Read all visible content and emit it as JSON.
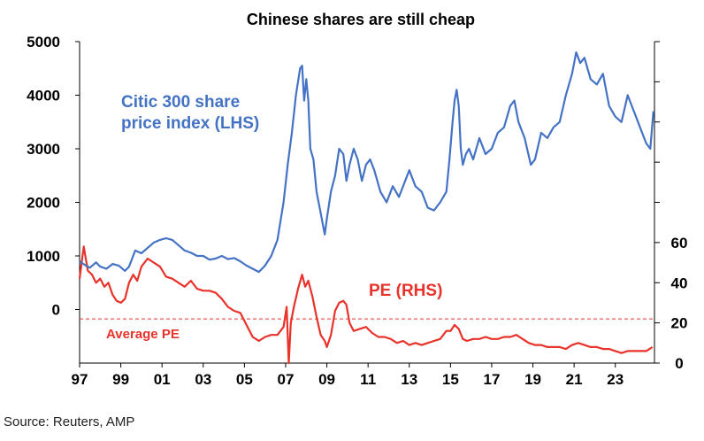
{
  "chart_data": {
    "type": "line",
    "title": "Chinese shares are still cheap",
    "source": "Source: Reuters, AMP",
    "x_ticks": [
      "97",
      "99",
      "01",
      "03",
      "05",
      "07",
      "09",
      "11",
      "13",
      "15",
      "17",
      "19",
      "21",
      "23"
    ],
    "x_tick_years": [
      1997,
      1999,
      2001,
      2003,
      2005,
      2007,
      2009,
      2011,
      2013,
      2015,
      2017,
      2019,
      2021,
      2023
    ],
    "xlim": [
      1997,
      2024.9
    ],
    "left_axis": {
      "ticks": [
        "5000",
        "4000",
        "3000",
        "2000",
        "1000",
        "0"
      ],
      "tick_values": [
        5000,
        4000,
        3000,
        2000,
        1000,
        0
      ],
      "ylim": [
        -1000,
        5000
      ]
    },
    "right_axis": {
      "ticks": [
        "60",
        "40",
        "20",
        "0"
      ],
      "tick_values": [
        60,
        40,
        20,
        0
      ],
      "ylim": [
        0,
        160
      ]
    },
    "average_pe": 22,
    "labels": {
      "lhs_line1": "Citic 300 share",
      "lhs_line2": "price index (LHS)",
      "rhs": "PE (RHS)",
      "avg": "Average PE"
    },
    "series": [
      {
        "name": "Citic 300 share price index (LHS)",
        "axis": "left",
        "color": "#4472C4",
        "x": [
          1997.0,
          1997.3,
          1997.5,
          1997.8,
          1998.0,
          1998.3,
          1998.6,
          1998.9,
          1999.2,
          1999.4,
          1999.7,
          2000.0,
          2000.3,
          2000.6,
          2000.9,
          2001.2,
          2001.5,
          2001.8,
          2002.1,
          2002.4,
          2002.7,
          2003.0,
          2003.3,
          2003.6,
          2003.9,
          2004.2,
          2004.5,
          2004.8,
          2005.1,
          2005.4,
          2005.7,
          2006.0,
          2006.3,
          2006.6,
          2006.9,
          2007.1,
          2007.3,
          2007.5,
          2007.7,
          2007.8,
          2007.9,
          2008.0,
          2008.1,
          2008.2,
          2008.35,
          2008.5,
          2008.7,
          2008.9,
          2009.0,
          2009.2,
          2009.4,
          2009.6,
          2009.8,
          2009.95,
          2010.1,
          2010.3,
          2010.5,
          2010.7,
          2010.9,
          2011.1,
          2011.3,
          2011.6,
          2011.9,
          2012.2,
          2012.5,
          2012.8,
          2013.0,
          2013.3,
          2013.6,
          2013.9,
          2014.2,
          2014.5,
          2014.8,
          2014.95,
          2015.1,
          2015.2,
          2015.3,
          2015.4,
          2015.5,
          2015.6,
          2015.75,
          2015.9,
          2016.1,
          2016.4,
          2016.7,
          2017.0,
          2017.3,
          2017.6,
          2017.9,
          2018.1,
          2018.3,
          2018.6,
          2018.9,
          2019.1,
          2019.4,
          2019.7,
          2020.0,
          2020.3,
          2020.6,
          2020.9,
          2021.1,
          2021.3,
          2021.5,
          2021.8,
          2022.1,
          2022.4,
          2022.7,
          2023.0,
          2023.3,
          2023.6,
          2023.9,
          2024.1,
          2024.3,
          2024.5,
          2024.7,
          2024.85
        ],
        "values": [
          900,
          820,
          780,
          880,
          800,
          760,
          850,
          820,
          720,
          800,
          1100,
          1050,
          1150,
          1250,
          1300,
          1330,
          1300,
          1200,
          1100,
          1060,
          1000,
          1000,
          930,
          950,
          1000,
          940,
          960,
          900,
          820,
          760,
          700,
          820,
          1000,
          1300,
          2000,
          2700,
          3300,
          4000,
          4500,
          4550,
          3900,
          4300,
          3900,
          3000,
          2800,
          2200,
          1800,
          1400,
          1700,
          2200,
          2500,
          3000,
          2900,
          2400,
          2700,
          3000,
          2800,
          2400,
          2700,
          2800,
          2600,
          2200,
          2000,
          2300,
          2100,
          2400,
          2600,
          2300,
          2200,
          1900,
          1850,
          2000,
          2200,
          2800,
          3500,
          3900,
          4100,
          3800,
          3000,
          2700,
          2900,
          3000,
          2800,
          3200,
          2900,
          3000,
          3300,
          3400,
          3800,
          3900,
          3500,
          3200,
          2700,
          2800,
          3300,
          3200,
          3400,
          3500,
          4000,
          4400,
          4800,
          4600,
          4700,
          4300,
          4200,
          4400,
          3800,
          3600,
          3500,
          4000,
          3700,
          3500,
          3300,
          3100,
          3000,
          3700
        ]
      },
      {
        "name": "PE (RHS)",
        "axis": "right",
        "color": "#E8322A",
        "x": [
          1997.0,
          1997.2,
          1997.4,
          1997.6,
          1997.8,
          1998.0,
          1998.2,
          1998.4,
          1998.6,
          1998.8,
          1999.0,
          1999.2,
          1999.4,
          1999.6,
          1999.8,
          2000.0,
          2000.3,
          2000.6,
          2000.9,
          2001.2,
          2001.5,
          2001.8,
          2002.1,
          2002.4,
          2002.7,
          2003.0,
          2003.3,
          2003.6,
          2003.9,
          2004.2,
          2004.5,
          2004.8,
          2005.1,
          2005.4,
          2005.7,
          2006.0,
          2006.3,
          2006.6,
          2006.9,
          2007.05,
          2007.15,
          2007.25,
          2007.4,
          2007.6,
          2007.8,
          2007.95,
          2008.1,
          2008.3,
          2008.5,
          2008.7,
          2008.9,
          2009.0,
          2009.2,
          2009.4,
          2009.6,
          2009.8,
          2009.95,
          2010.1,
          2010.3,
          2010.6,
          2010.9,
          2011.2,
          2011.5,
          2011.8,
          2012.1,
          2012.4,
          2012.7,
          2013.0,
          2013.3,
          2013.6,
          2013.9,
          2014.2,
          2014.5,
          2014.8,
          2015.0,
          2015.2,
          2015.4,
          2015.6,
          2015.8,
          2016.1,
          2016.4,
          2016.7,
          2017.0,
          2017.3,
          2017.6,
          2017.9,
          2018.2,
          2018.5,
          2018.8,
          2019.1,
          2019.4,
          2019.7,
          2020.0,
          2020.3,
          2020.6,
          2020.9,
          2021.2,
          2021.5,
          2021.8,
          2022.1,
          2022.4,
          2022.7,
          2023.0,
          2023.3,
          2023.6,
          2023.9,
          2024.2,
          2024.5,
          2024.8
        ],
        "values": [
          42,
          58,
          46,
          44,
          40,
          42,
          38,
          40,
          34,
          31,
          30,
          32,
          40,
          44,
          41,
          48,
          52,
          50,
          48,
          43,
          42,
          40,
          38,
          41,
          37,
          36,
          36,
          35,
          32,
          28,
          26,
          25,
          19,
          13,
          11,
          13,
          14,
          14,
          18,
          28,
          0,
          20,
          28,
          37,
          44,
          38,
          41,
          33,
          23,
          14,
          11,
          8,
          14,
          26,
          30,
          31,
          29,
          20,
          16,
          17,
          18,
          15,
          13,
          13,
          12,
          10,
          11,
          9,
          10,
          9,
          10,
          11,
          12,
          16,
          16,
          19,
          17,
          12,
          11,
          12,
          12,
          13,
          12,
          12,
          13,
          13,
          14,
          12,
          10,
          9,
          9,
          8,
          8,
          8,
          7,
          9,
          10,
          9,
          8,
          8,
          7,
          7,
          6,
          5,
          6,
          6,
          6,
          6,
          8
        ]
      }
    ]
  }
}
